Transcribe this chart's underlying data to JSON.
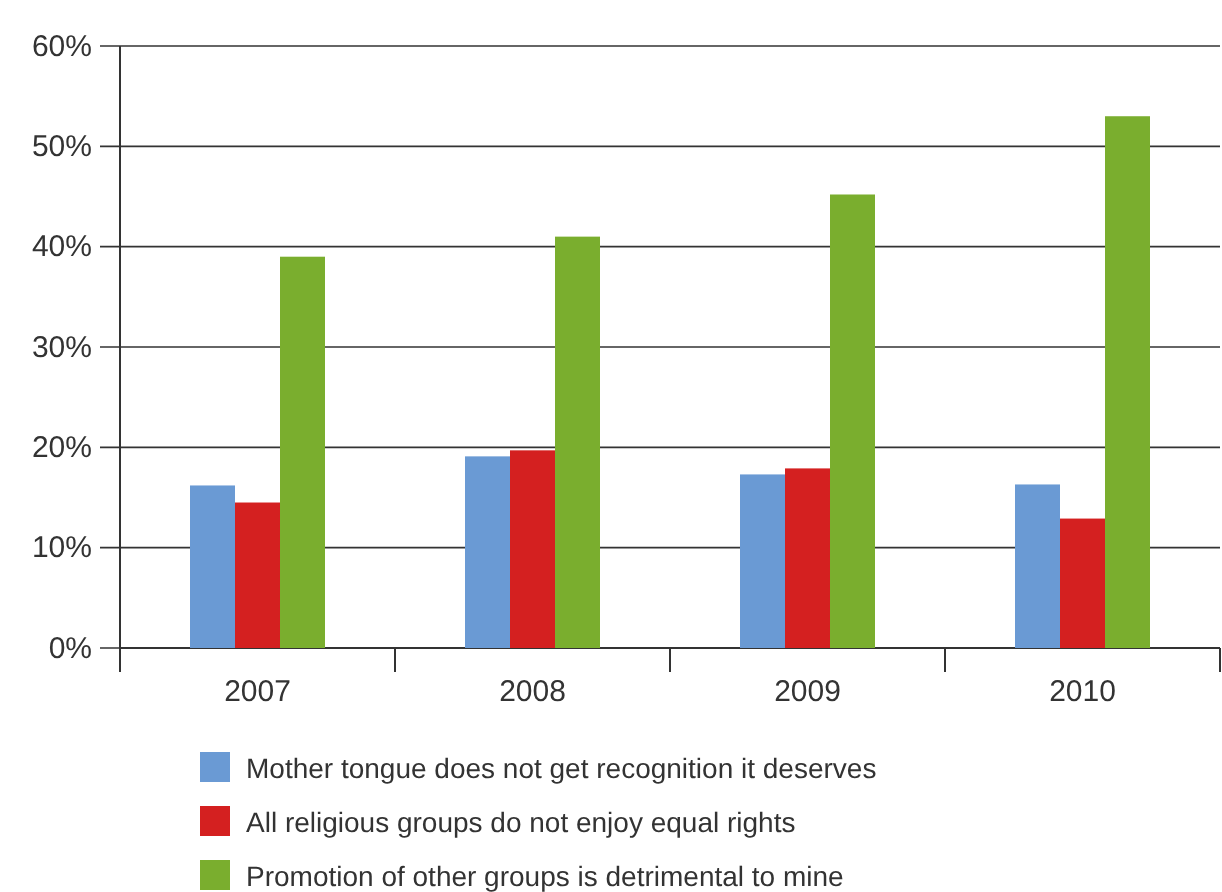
{
  "chart_data": {
    "type": "bar",
    "categories": [
      "2007",
      "2008",
      "2009",
      "2010"
    ],
    "series": [
      {
        "name": "Mother tongue does not get recognition it deserves",
        "color": "#6a9ad4",
        "values": [
          16.2,
          19.1,
          17.3,
          16.3
        ]
      },
      {
        "name": "All religious groups do not enjoy equal rights",
        "color": "#d42020",
        "values": [
          14.5,
          19.7,
          17.9,
          12.9
        ]
      },
      {
        "name": "Promotion of other groups is detrimental to mine",
        "color": "#7aae2e",
        "values": [
          39.0,
          41.0,
          45.2,
          53.0
        ]
      }
    ],
    "ylim": [
      0,
      60
    ],
    "yticks": [
      {
        "value": 0,
        "label": "0%"
      },
      {
        "value": 10,
        "label": "10%"
      },
      {
        "value": 20,
        "label": "20%"
      },
      {
        "value": 30,
        "label": "30%"
      },
      {
        "value": 40,
        "label": "40%"
      },
      {
        "value": 50,
        "label": "50%"
      },
      {
        "value": 60,
        "label": "60%"
      }
    ],
    "grid": "y",
    "legend": "bottom"
  }
}
